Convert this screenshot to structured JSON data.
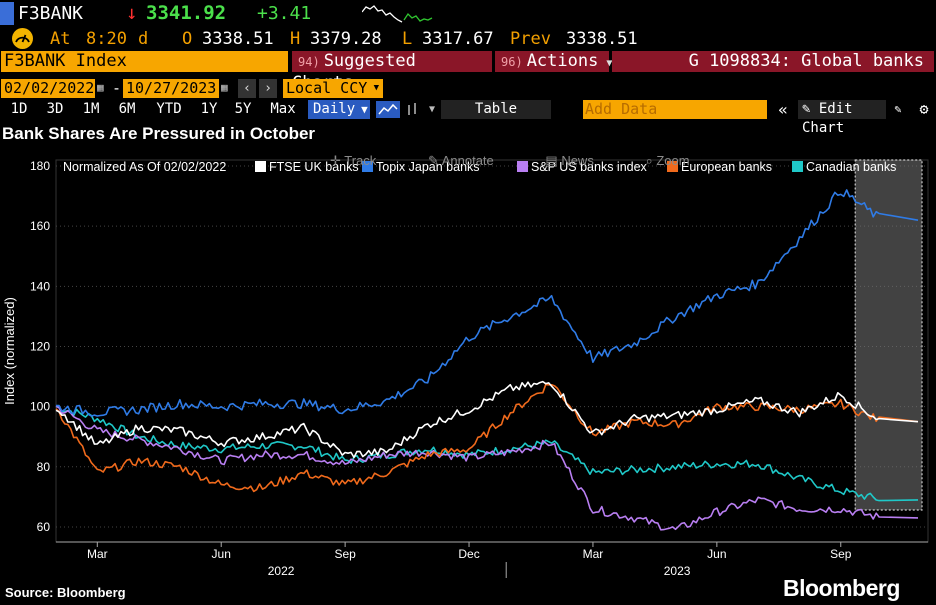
{
  "ticker": {
    "name": "F3BANK",
    "arrow": "↓",
    "last": "3341.92",
    "change": "+3.41"
  },
  "quote": {
    "at_label": "At",
    "time": "8:20",
    "time_flag": "d",
    "open_label": "O",
    "open": "3338.51",
    "high_label": "H",
    "high": "3379.28",
    "low_label": "L",
    "low": "3317.67",
    "prev_label": "Prev",
    "prev": "3338.51"
  },
  "toolbar_top": {
    "security": "F3BANK Index",
    "suggested_num": "94)",
    "suggested": "Suggested Charts",
    "actions_num": "96)",
    "actions": "Actions",
    "chart_title": "G 1098834: Global banks"
  },
  "range": {
    "start": "02/02/2022",
    "dash": "-",
    "end": "10/27/2023",
    "currency": "Local CCY"
  },
  "periods": [
    "1D",
    "3D",
    "1M",
    "6M",
    "YTD",
    "1Y",
    "5Y",
    "Max"
  ],
  "frequency": "Daily",
  "table_label": "Table",
  "add_data_placeholder": "Add Data",
  "edit_chart": "Edit Chart",
  "headline": "Bank Shares Are Pressured in October",
  "chart_tools": [
    "Track",
    "Annotate",
    "News",
    "Zoom"
  ],
  "colors": {
    "ftse": "#ffffff",
    "topix": "#2f7be6",
    "sp": "#b97ff2",
    "euro": "#f06a1c",
    "canada": "#1fc8c8",
    "amber": "#f7a600",
    "alert_red": "#8a1628"
  },
  "chart_data": {
    "type": "line",
    "title": "Bank Shares Are Pressured in October",
    "ylabel": "Index (normalized)",
    "legend_prefix": "Normalized As Of 02/02/2022",
    "ylim": [
      55,
      182
    ],
    "yticks": [
      60,
      80,
      100,
      120,
      140,
      160,
      180
    ],
    "xticks": [
      "Mar",
      "Jun",
      "Sep",
      "Dec",
      "Mar",
      "Jun",
      "Sep"
    ],
    "years": [
      "2022",
      "2023"
    ],
    "x": [
      "2022-02",
      "2022-03",
      "2022-04",
      "2022-05",
      "2022-06",
      "2022-07",
      "2022-08",
      "2022-09",
      "2022-10",
      "2022-11",
      "2022-12",
      "2023-01",
      "2023-02",
      "2023-03",
      "2023-04",
      "2023-05",
      "2023-06",
      "2023-07",
      "2023-08",
      "2023-09",
      "2023-10"
    ],
    "series": [
      {
        "name": "FTSE UK banks",
        "values": [
          100,
          87,
          93,
          92,
          88,
          90,
          93,
          84,
          85,
          94,
          99,
          106,
          108,
          91,
          96,
          97,
          99,
          102,
          98,
          104,
          95
        ]
      },
      {
        "name": "Topix Japan banks",
        "values": [
          100,
          98,
          99,
          101,
          100,
          101,
          101,
          99,
          102,
          109,
          123,
          130,
          136,
          116,
          121,
          130,
          137,
          141,
          156,
          172,
          162
        ]
      },
      {
        "name": "S&P US banks index",
        "values": [
          100,
          92,
          89,
          86,
          82,
          84,
          84,
          81,
          84,
          85,
          83,
          85,
          88,
          66,
          63,
          59,
          65,
          69,
          66,
          66,
          63
        ]
      },
      {
        "name": "European banks",
        "values": [
          100,
          78,
          82,
          80,
          74,
          73,
          78,
          74,
          78,
          84,
          86,
          98,
          108,
          91,
          95,
          94,
          100,
          100,
          99,
          101,
          95
        ]
      },
      {
        "name": "Canadian banks",
        "values": [
          100,
          96,
          90,
          87,
          86,
          87,
          87,
          82,
          84,
          86,
          84,
          86,
          88,
          78,
          79,
          80,
          81,
          81,
          76,
          72,
          69
        ]
      }
    ]
  },
  "footer": {
    "source": "Source: Bloomberg",
    "brand": "Bloomberg"
  }
}
